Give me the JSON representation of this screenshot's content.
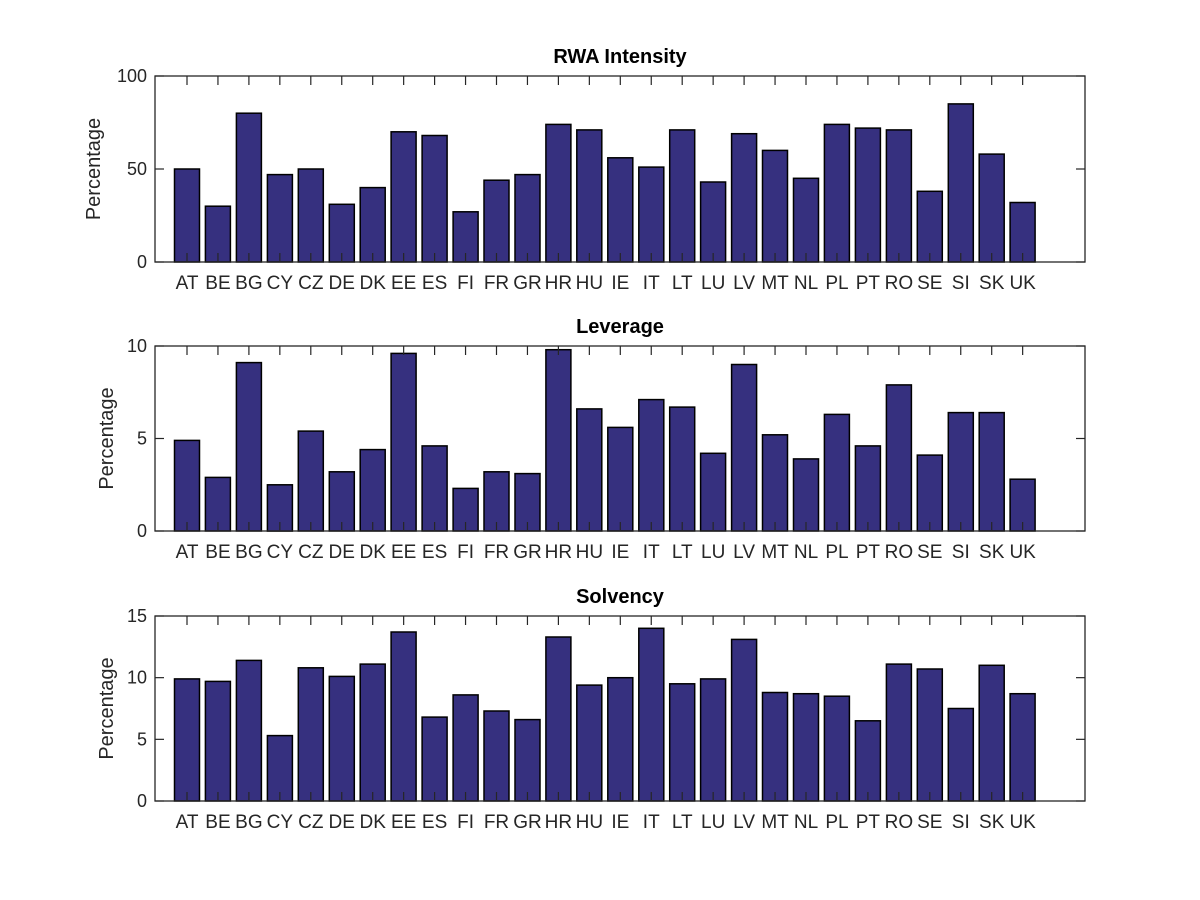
{
  "chart_data": [
    {
      "type": "bar",
      "title": "RWA Intensity",
      "xlabel": "",
      "ylabel": "Percentage",
      "ylim": [
        0,
        100
      ],
      "yticks": [
        "0",
        "50",
        "100"
      ],
      "grid": false,
      "bar_color": "#36307f",
      "categories": [
        "AT",
        "BE",
        "BG",
        "CY",
        "CZ",
        "DE",
        "DK",
        "EE",
        "ES",
        "FI",
        "FR",
        "GR",
        "HR",
        "HU",
        "IE",
        "IT",
        "LT",
        "LU",
        "LV",
        "MT",
        "NL",
        "PL",
        "PT",
        "RO",
        "SE",
        "SI",
        "SK",
        "UK"
      ],
      "values": [
        50,
        30,
        80,
        47,
        50,
        31,
        40,
        70,
        68,
        27,
        44,
        47,
        74,
        71,
        56,
        51,
        71,
        43,
        69,
        60,
        45,
        74,
        72,
        71,
        38,
        85,
        58,
        32
      ]
    },
    {
      "type": "bar",
      "title": "Leverage",
      "xlabel": "",
      "ylabel": "Percentage",
      "ylim": [
        0,
        10
      ],
      "yticks": [
        "0",
        "5",
        "10"
      ],
      "grid": false,
      "bar_color": "#36307f",
      "categories": [
        "AT",
        "BE",
        "BG",
        "CY",
        "CZ",
        "DE",
        "DK",
        "EE",
        "ES",
        "FI",
        "FR",
        "GR",
        "HR",
        "HU",
        "IE",
        "IT",
        "LT",
        "LU",
        "LV",
        "MT",
        "NL",
        "PL",
        "PT",
        "RO",
        "SE",
        "SI",
        "SK",
        "UK"
      ],
      "values": [
        4.9,
        2.9,
        9.1,
        2.5,
        5.4,
        3.2,
        4.4,
        9.6,
        4.6,
        2.3,
        3.2,
        3.1,
        9.8,
        6.6,
        5.6,
        7.1,
        6.7,
        4.2,
        9.0,
        5.2,
        3.9,
        6.3,
        4.6,
        7.9,
        4.1,
        6.4,
        6.4,
        2.8
      ]
    },
    {
      "type": "bar",
      "title": "Solvency",
      "xlabel": "",
      "ylabel": "Percentage",
      "ylim": [
        0,
        15
      ],
      "yticks": [
        "0",
        "5",
        "10",
        "15"
      ],
      "grid": false,
      "bar_color": "#36307f",
      "categories": [
        "AT",
        "BE",
        "BG",
        "CY",
        "CZ",
        "DE",
        "DK",
        "EE",
        "ES",
        "FI",
        "FR",
        "GR",
        "HR",
        "HU",
        "IE",
        "IT",
        "LT",
        "LU",
        "LV",
        "MT",
        "NL",
        "PL",
        "PT",
        "RO",
        "SE",
        "SI",
        "SK",
        "UK"
      ],
      "values": [
        9.9,
        9.7,
        11.4,
        5.3,
        10.8,
        10.1,
        11.1,
        13.7,
        6.8,
        8.6,
        7.3,
        6.6,
        13.3,
        9.4,
        10.0,
        14.0,
        9.5,
        9.9,
        13.1,
        8.8,
        8.7,
        8.5,
        6.5,
        11.1,
        10.7,
        7.5,
        11.0,
        8.7
      ]
    }
  ]
}
